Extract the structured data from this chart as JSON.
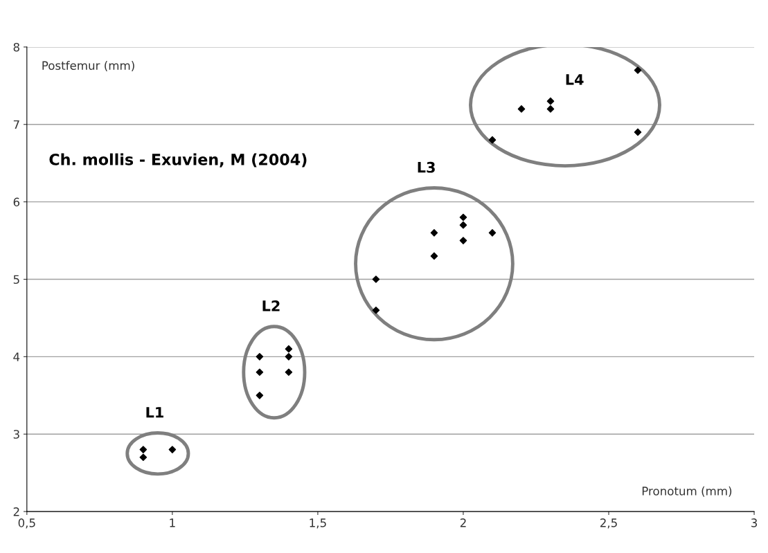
{
  "chart_data": {
    "type": "scatter",
    "title": "Ch. mollis - Exuvien, M (2004)",
    "xlabel": "Pronotum (mm)",
    "ylabel": "Postfemur (mm)",
    "series": [
      {
        "color": "#000000",
        "x": [
          0.9,
          0.9,
          1.0
        ],
        "values": [
          2.8,
          2.7,
          2.8
        ]
      },
      {
        "color": "#000000",
        "x": [
          1.3,
          1.3,
          1.3,
          1.4,
          1.4,
          1.4
        ],
        "values": [
          4.0,
          3.8,
          3.5,
          4.1,
          4.0,
          3.8
        ]
      },
      {
        "color": "#000000",
        "x": [
          1.7,
          1.7,
          1.9,
          1.9,
          2.0,
          2.0,
          2.0,
          2.1
        ],
        "values": [
          5.0,
          4.6,
          5.6,
          5.3,
          5.8,
          5.7,
          5.5,
          5.6
        ]
      },
      {
        "color": "#000000",
        "x": [
          2.1,
          2.2,
          2.3,
          2.3,
          2.6,
          2.6
        ],
        "values": [
          6.8,
          7.2,
          7.3,
          7.2,
          7.7,
          6.9
        ]
      }
    ],
    "annotations": [
      "L1",
      "L2",
      "L3",
      "L4"
    ],
    "xlim": [
      0.5,
      3
    ],
    "xticks": [
      {
        "value": 0.5,
        "label": "0,5"
      },
      1,
      {
        "value": 1.5,
        "label": "1,5"
      },
      2,
      {
        "value": 2.5,
        "label": "2,5"
      },
      3
    ],
    "ylim": [
      2,
      8
    ],
    "yticks": [
      2,
      3,
      4,
      5,
      6,
      7,
      8
    ],
    "grid": "y",
    "marker": "diamond",
    "legend": false
  }
}
